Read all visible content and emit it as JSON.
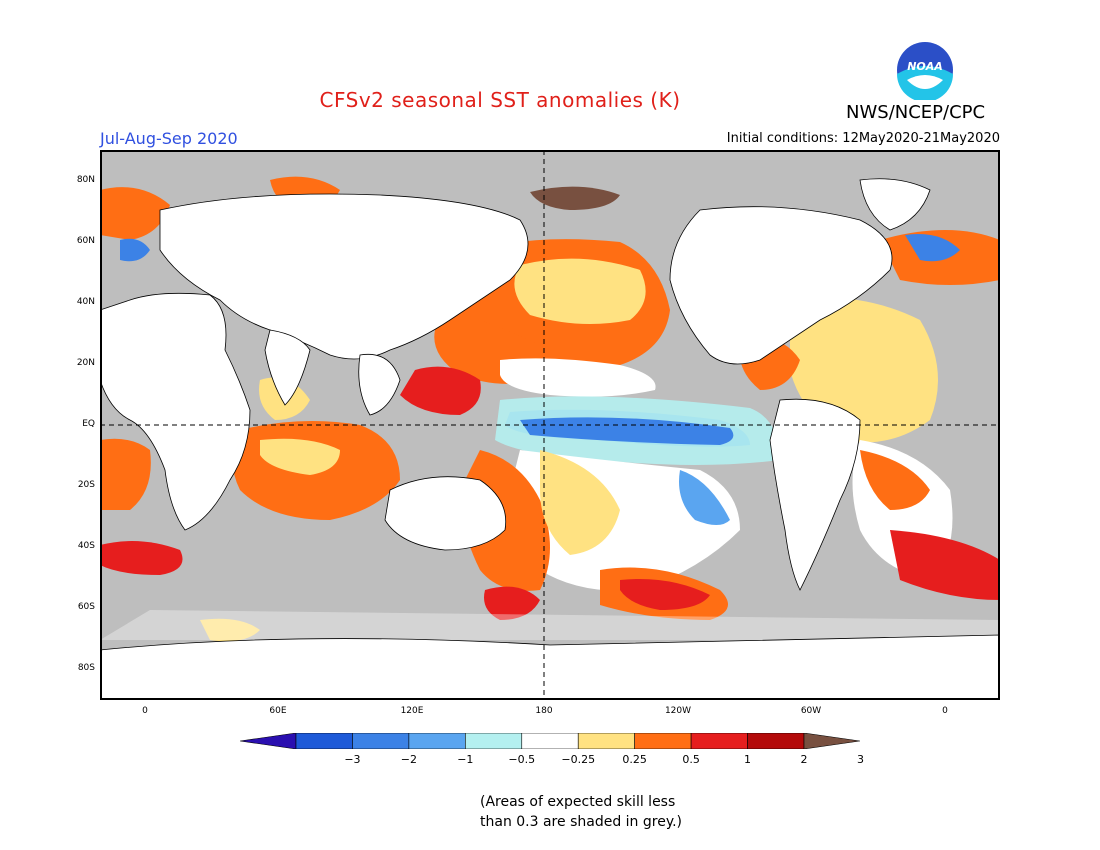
{
  "title": "CFSv2 seasonal SST anomalies (K)",
  "period": "Jul-Aug-Sep 2020",
  "agency": "NWS/NCEP/CPC",
  "logo_text": "NOAA",
  "initial_conditions": "Initial conditions: 12May2020-21May2020",
  "note_line1": "(Areas of expected skill less",
  "note_line2": "than 0.3 are shaded in grey.)",
  "map": {
    "projection": "equirectangular",
    "lon_range": [
      -20,
      380
    ],
    "lat_range": [
      -90,
      90
    ],
    "grid": "dashed lines at EQ and 180",
    "lat_ticks": [
      "80N",
      "60N",
      "40N",
      "20N",
      "EQ",
      "20S",
      "40S",
      "60S",
      "80S"
    ],
    "lon_ticks": [
      "0",
      "60E",
      "120E",
      "180",
      "120W",
      "60W",
      "0"
    ],
    "land_color": "#ffffff",
    "low_skill_color": "#bebebe"
  },
  "colorbar": {
    "labels": [
      "-3",
      "-2",
      "-1",
      "-0.5",
      "-0.25",
      "0.25",
      "0.5",
      "1",
      "2",
      "3"
    ],
    "colors": [
      "#2a0fb0",
      "#1e5ad8",
      "#3c82e6",
      "#5aa5f0",
      "#b4f0f0",
      "#ffffff",
      "#ffe282",
      "#ff6e14",
      "#e61e1e",
      "#b40a0a",
      "#785040"
    ]
  }
}
